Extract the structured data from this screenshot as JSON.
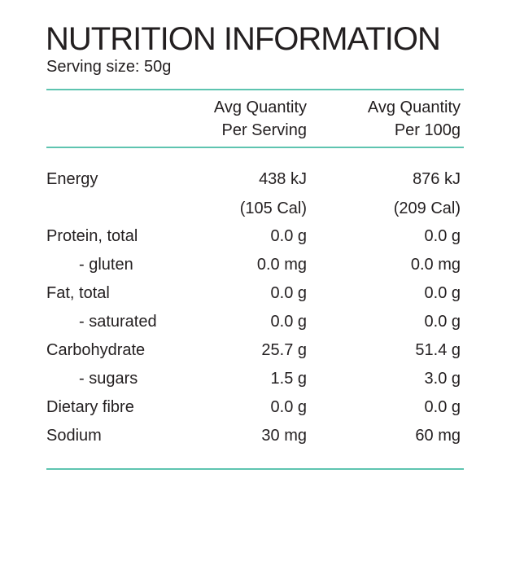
{
  "header": {
    "title": "NUTRITION INFORMATION",
    "serving": "Serving size: 50g"
  },
  "table": {
    "columns": [
      [
        "Avg Quantity",
        "Per Serving"
      ],
      [
        "Avg Quantity",
        "Per 100g"
      ]
    ],
    "rows": [
      {
        "label": "Energy",
        "values": [
          "438 kJ",
          "876 kJ"
        ],
        "sub": [
          "(105 Cal)",
          "(209 Cal)"
        ]
      },
      {
        "label": "Protein, total",
        "values": [
          "0.0 g",
          "0.0 g"
        ]
      },
      {
        "label": "- gluten",
        "values": [
          "0.0 mg",
          "0.0 mg"
        ]
      },
      {
        "label": "Fat, total",
        "values": [
          "0.0 g",
          "0.0 g"
        ]
      },
      {
        "label": "- saturated",
        "values": [
          "0.0 g",
          "0.0 g"
        ]
      },
      {
        "label": "Carbohydrate",
        "values": [
          "25.7 g",
          "51.4 g"
        ]
      },
      {
        "label": "- sugars",
        "values": [
          "1.5 g",
          "3.0 g"
        ]
      },
      {
        "label": "Dietary fibre",
        "values": [
          "0.0 g",
          "0.0 g"
        ]
      },
      {
        "label": "Sodium",
        "values": [
          "30 mg",
          "60 mg"
        ]
      }
    ]
  }
}
